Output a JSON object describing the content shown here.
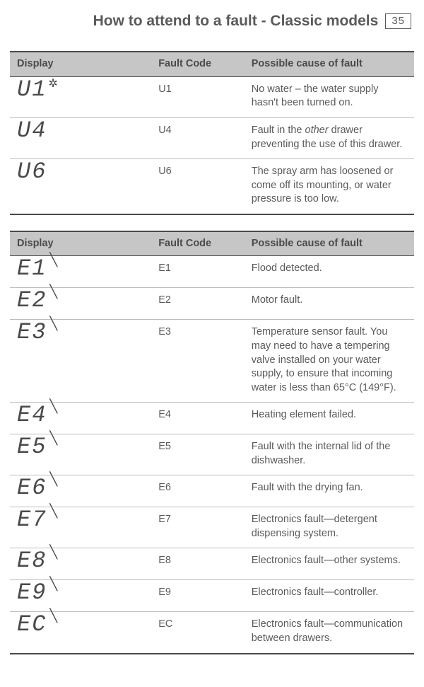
{
  "header": {
    "title": "How to attend to a fault - Classic models",
    "page_number": "35"
  },
  "tables": [
    {
      "columns": [
        "Display",
        "Fault Code",
        "Possible cause of fault"
      ],
      "rows": [
        {
          "display": "U1",
          "display_suffix": "*",
          "code": "U1",
          "cause": "No water – the water supply hasn't been turned on."
        },
        {
          "display": "U4",
          "display_suffix": "",
          "code": "U4",
          "cause": "Fault in the <em class='other'>other</em> drawer preventing the use of this drawer."
        },
        {
          "display": "U6",
          "display_suffix": "",
          "code": "U6",
          "cause": "The spray arm has loosened or come off its mounting, or water pressure is too low."
        }
      ]
    },
    {
      "columns": [
        "Display",
        "Fault Code",
        "Possible cause of fault"
      ],
      "rows": [
        {
          "display": "E1",
          "display_suffix": "tick",
          "code": "E1",
          "cause": "Flood detected."
        },
        {
          "display": "E2",
          "display_suffix": "tick",
          "code": "E2",
          "cause": "Motor fault."
        },
        {
          "display": "E3",
          "display_suffix": "tick",
          "code": "E3",
          "cause": "Temperature sensor fault. You may need to have a tempering valve installed on your water supply, to ensure that incoming water is less than 65°C (149°F)."
        },
        {
          "display": "E4",
          "display_suffix": "tick",
          "code": "E4",
          "cause": "Heating element failed."
        },
        {
          "display": "E5",
          "display_suffix": "tick",
          "code": "E5",
          "cause": "Fault with the internal lid of the dishwasher."
        },
        {
          "display": "E6",
          "display_suffix": "tick",
          "code": "E6",
          "cause": "Fault with the drying fan."
        },
        {
          "display": "E7",
          "display_suffix": "tick",
          "code": "E7",
          "cause": "Electronics fault—detergent dispensing system."
        },
        {
          "display": "E8",
          "display_suffix": "tick",
          "code": "E8",
          "cause": "Electronics fault—other systems."
        },
        {
          "display": "E9",
          "display_suffix": "tick",
          "code": "E9",
          "cause": "Electronics fault—controller."
        },
        {
          "display": "EC",
          "display_suffix": "tick",
          "code": "EC",
          "cause": "Electronics fault—communication between drawers."
        }
      ]
    }
  ],
  "colors": {
    "header_bg": "#c6c6c7",
    "text": "#5a5a5a",
    "border_major": "#4a4a4a",
    "border_minor": "#bdbdbd",
    "background": "#ffffff"
  },
  "typography": {
    "title_fontsize": 21,
    "body_fontsize": 14.5,
    "segment_fontsize": 32,
    "font_family": "Arial"
  }
}
